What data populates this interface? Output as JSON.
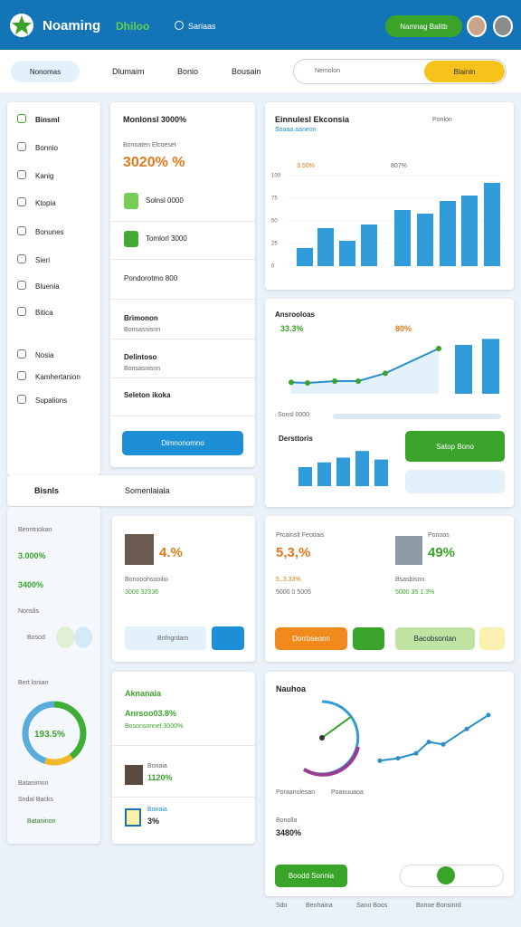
{
  "header": {
    "brand": "Noaming",
    "section": "Dhiloo",
    "link": "Sariaas",
    "button": "Namnag Balitb"
  },
  "nav": {
    "tabs": [
      "Nonomas",
      "Dlumaim",
      "Bonio",
      "Bousain"
    ],
    "search": "Nemolon",
    "button": "Blainin"
  },
  "sidebar": {
    "items": [
      "Binsml",
      "Bonnio",
      "Kanig",
      "Ktopia",
      "Bonunes",
      "Sieri",
      "Bluenia",
      "Bitica",
      "Nosia",
      "Kamhertanion",
      "Supalions"
    ]
  },
  "summary": {
    "title": "Monlonsl 3000%",
    "subtitle": "Bonoaten Elcoeset",
    "value": "3020% %",
    "rows": [
      "Solnsl 0000",
      "Tomlorl 3000",
      "Pondorotmo 800",
      "Brimonon",
      "Delintoso",
      "Seleton ikoka"
    ],
    "row_notes": [
      "Bonsasnisnn",
      "Bonsasnisnn"
    ],
    "button": "Dimnonomno"
  },
  "bar_chart": {
    "type": "bar",
    "title": "Einnulesl Ekconsia",
    "subtitle": "Soaaa aaneon",
    "filter": "Ponlon",
    "legend": [
      "3.50%",
      "807%"
    ],
    "values": [
      20,
      42,
      28,
      46,
      62,
      58,
      72,
      78,
      92
    ],
    "ylim": [
      0,
      100
    ],
    "yticks": [
      0,
      25,
      50,
      75,
      100
    ],
    "colors": [
      "#2f9bd8",
      "#2f9bd8",
      "#2f9bd8",
      "#2f9bd8",
      "#2f9bd8",
      "#2f9bd8",
      "#2f9bd8",
      "#2f9bd8",
      "#2f9bd8"
    ]
  },
  "trend_chart": {
    "type": "line",
    "title": "Ansrooloas",
    "label_a": "33.3%",
    "label_b": "80%",
    "values": [
      19,
      18,
      21,
      21,
      34,
      75
    ],
    "bars": [
      81,
      91
    ],
    "ylim": [
      0,
      120
    ],
    "footer": "Sonsl 0000",
    "color": "#2a8fc9"
  },
  "small_chart": {
    "type": "bar",
    "title": "Dersttoris",
    "values": [
      20,
      25,
      30,
      37,
      28
    ],
    "ylim": [
      0,
      40
    ],
    "button": "Satop Bono"
  },
  "left_panel": {
    "title": "Bisnls",
    "menu": "Somenlaiala",
    "stat_label": "Benntnokan",
    "stats": [
      "3.000%",
      "3400%"
    ],
    "sub": "Nonslis",
    "chip": "Bosod",
    "donut_title": "Bert lonian",
    "donut": {
      "label": "193.5%",
      "segments": [
        {
          "value": 40,
          "color": "#3fae35"
        },
        {
          "value": 15,
          "color": "#f3b72c"
        },
        {
          "value": 45,
          "color": "#59acdc"
        }
      ]
    },
    "notes": [
      "Batanimnn",
      "Sndal Backs"
    ],
    "tag": "Bataninon"
  },
  "people": [
    {
      "value": "4.%",
      "lines": [
        "Bonooohsooilio",
        "3000 32336"
      ],
      "chip": "Bnfngrdam"
    },
    {
      "value": "5,3,%",
      "title": "Prcainslt Feotiais",
      "lines": [
        "5.,3.33%",
        "5000 0 5005"
      ],
      "chip": "Dorrbseonn"
    },
    {
      "value": "49%",
      "title": "Ponoos",
      "lines": [
        "Bsasbisnn",
        "5000 35 1.3%"
      ],
      "chip": "Bacobsontan"
    }
  ],
  "list_card": {
    "title": "Aknanaia",
    "value": "Anrsoo03.8%",
    "sub": "Bosonsonnel.3000%",
    "item": "1120%",
    "item_note": "Bonaia",
    "last": "3%",
    "last_note": "Bonaia"
  },
  "gauge_card": {
    "title": "Nauhoa",
    "legend": [
      "Poraanolesan",
      "Poanuuaoa"
    ],
    "values": [
      33,
      36,
      42,
      56,
      53,
      72,
      89
    ],
    "ylim": [
      0,
      100
    ],
    "gauge": 70,
    "stat": "3480%",
    "stat_note": "Bonolla",
    "button": "Boodd Sonnia"
  },
  "footer": [
    "Sdo",
    "Benhaina",
    "Sano Boos",
    "Bonoe Bonsinrd"
  ]
}
